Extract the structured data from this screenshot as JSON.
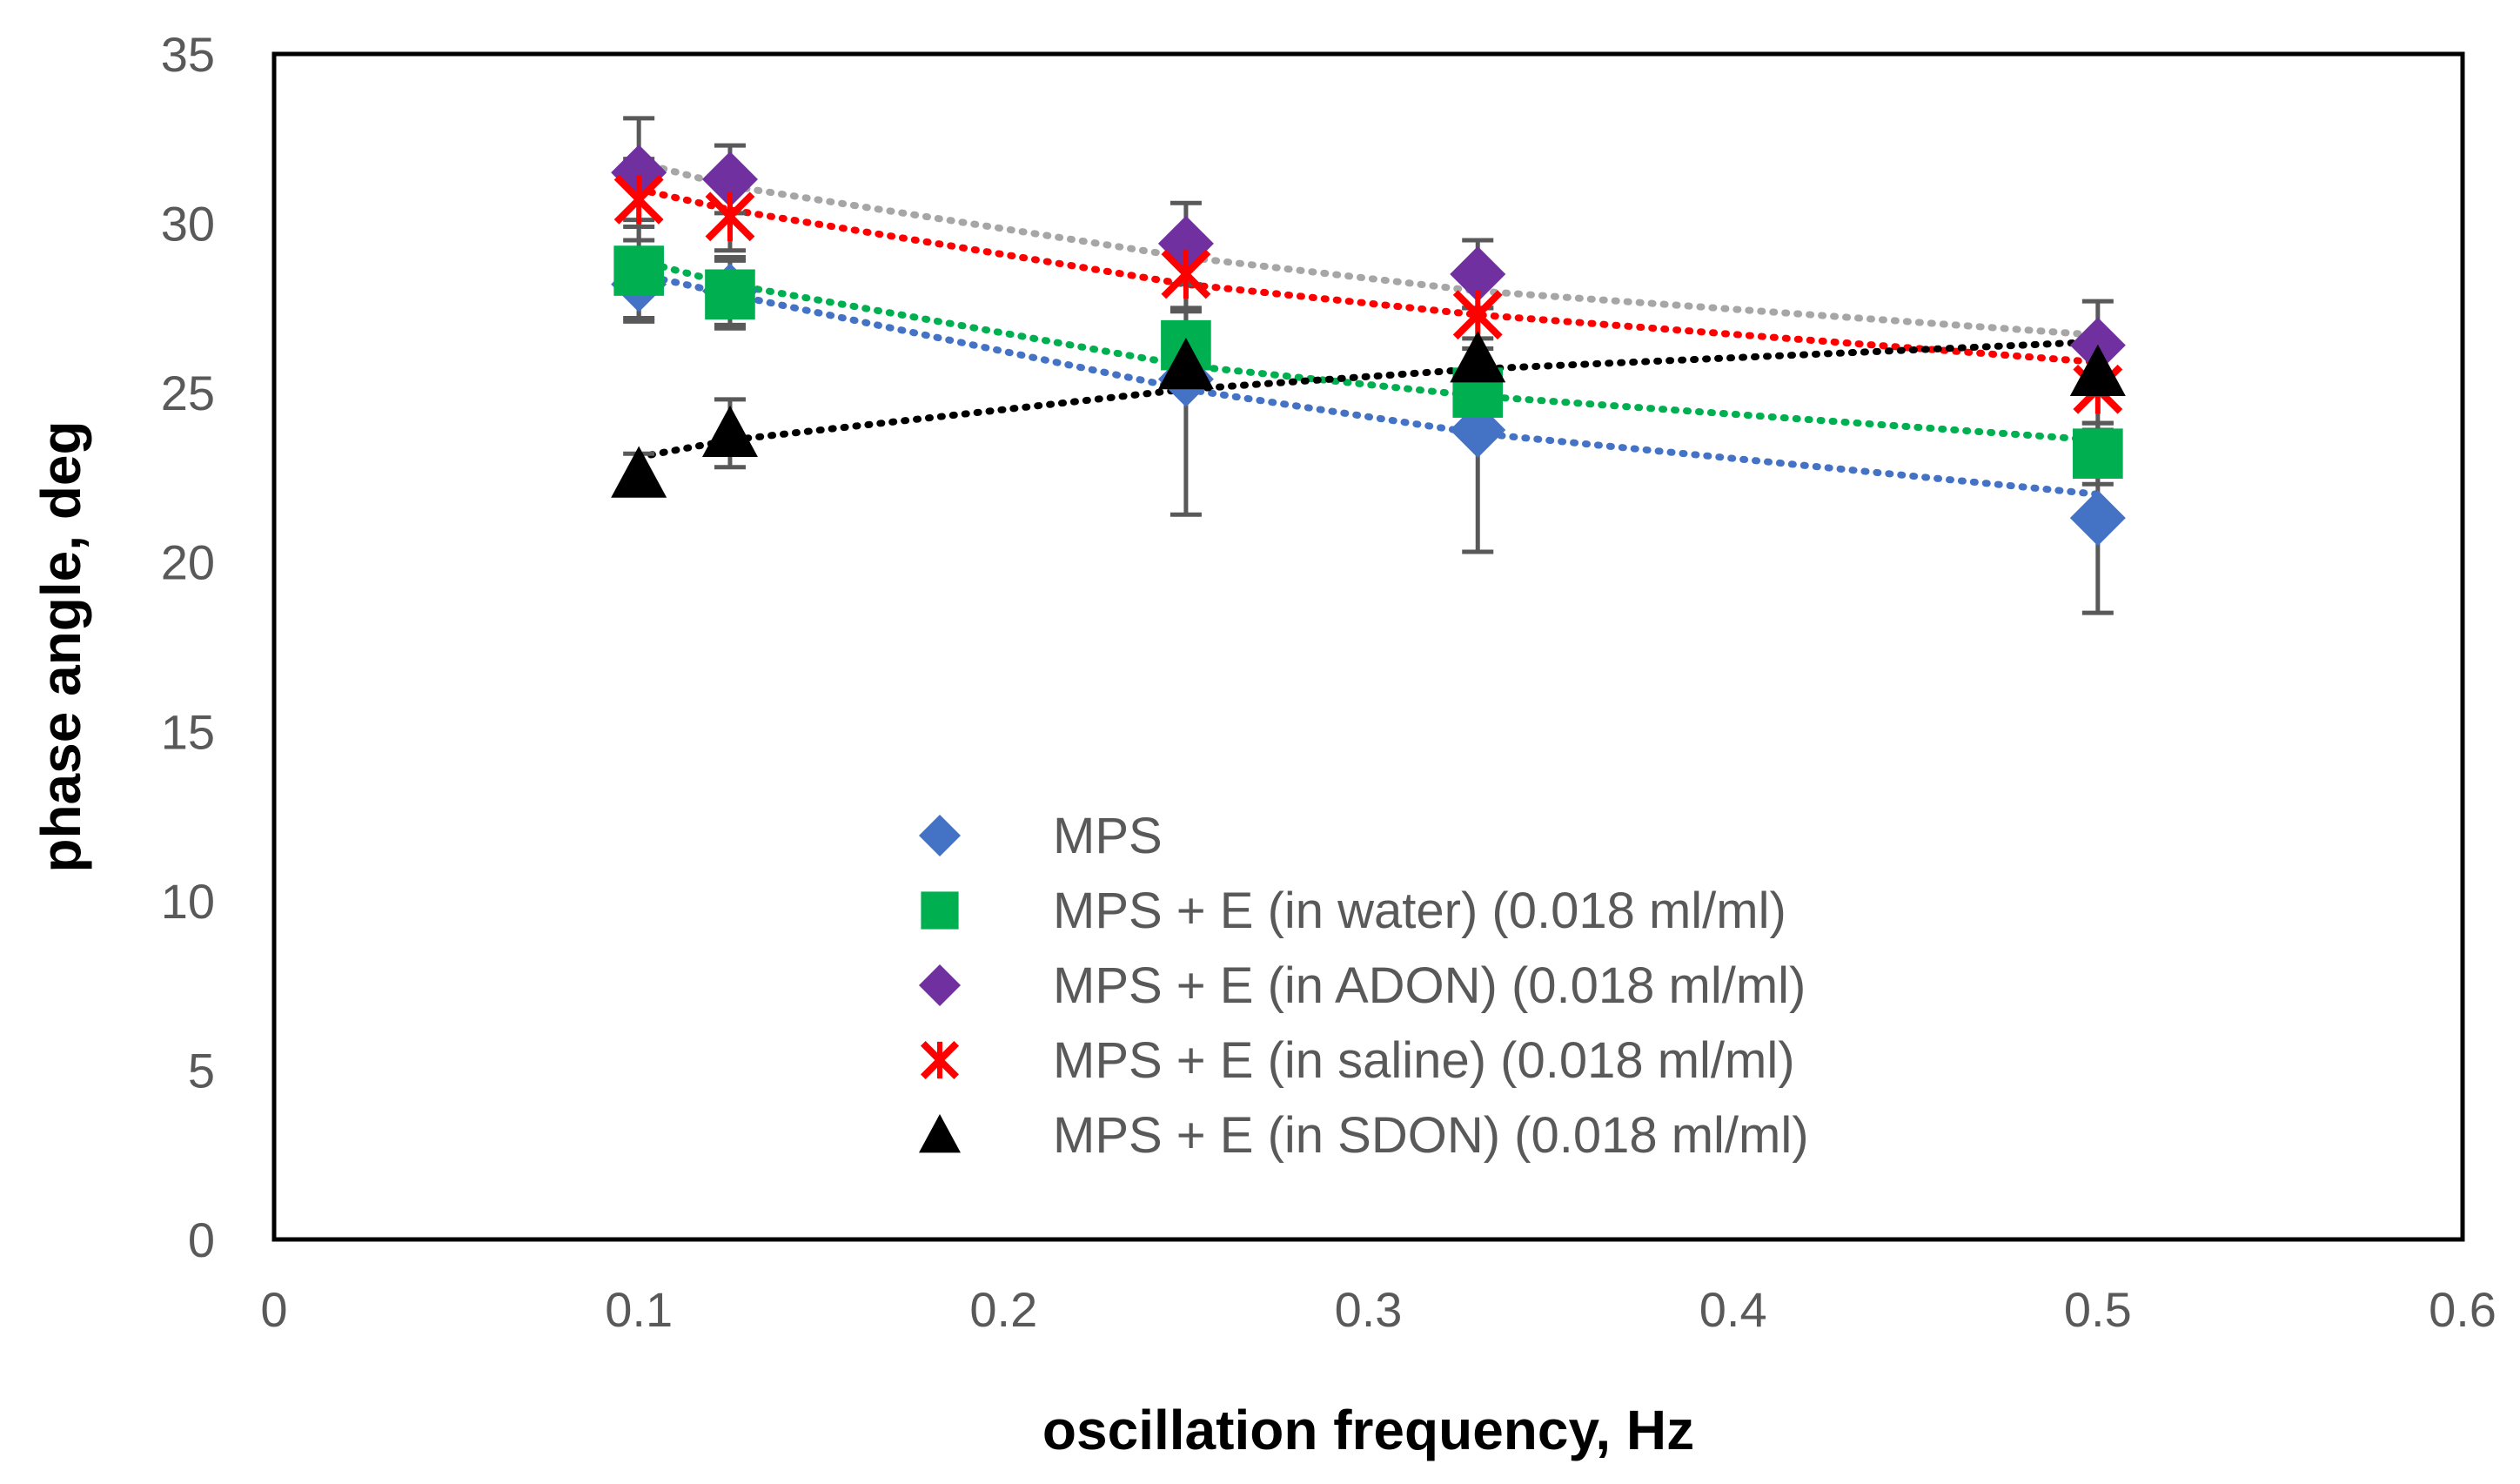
{
  "chart_data": {
    "type": "scatter",
    "xlabel": "oscillation frequency, Hz",
    "ylabel": "phase angle, deg",
    "xlim": [
      0,
      0.6
    ],
    "ylim": [
      0,
      35
    ],
    "xticks": [
      0,
      0.1,
      0.2,
      0.3,
      0.4,
      0.5,
      0.6
    ],
    "yticks": [
      0,
      5,
      10,
      15,
      20,
      25,
      30,
      35
    ],
    "xtick_labels": [
      "0",
      "0.1",
      "0.2",
      "0.3",
      "0.4",
      "0.5",
      "0.6"
    ],
    "ytick_labels": [
      "0",
      "5",
      "10",
      "15",
      "20",
      "25",
      "30",
      "35"
    ],
    "grid": false,
    "legend_position": "center",
    "series": [
      {
        "name": "MPS",
        "marker": "diamond",
        "color": "#4472C4",
        "x": [
          0.1,
          0.125,
          0.25,
          0.33,
          0.5
        ],
        "y": [
          28.2,
          28.0,
          25.4,
          23.9,
          21.3
        ],
        "err": [
          1.0,
          1.0,
          4.0,
          3.6,
          2.8
        ],
        "trend": [
          [
            0.1,
            28.5
          ],
          [
            0.125,
            27.9
          ],
          [
            0.25,
            25.1
          ],
          [
            0.33,
            23.8
          ],
          [
            0.5,
            22.0
          ]
        ]
      },
      {
        "name": "MPS + E (in water) (0.018 ml/ml)",
        "marker": "square",
        "color": "#00B050",
        "x": [
          0.1,
          0.125,
          0.25,
          0.33,
          0.5
        ],
        "y": [
          28.6,
          27.9,
          26.4,
          25.0,
          23.2
        ],
        "err": [
          1.5,
          1.0,
          1.0,
          0.9,
          0.9
        ],
        "trend": [
          [
            0.1,
            28.9
          ],
          [
            0.125,
            28.2
          ],
          [
            0.25,
            25.8
          ],
          [
            0.33,
            24.9
          ],
          [
            0.5,
            23.6
          ]
        ]
      },
      {
        "name": "MPS + E (in ADON) (0.018 ml/ml)",
        "marker": "diamond",
        "color": "#7030A0",
        "x": [
          0.1,
          0.125,
          0.25,
          0.33,
          0.5
        ],
        "y": [
          31.5,
          31.3,
          29.4,
          28.5,
          26.4
        ],
        "err": [
          1.6,
          1.0,
          1.2,
          1.0,
          1.3
        ],
        "trend": [
          [
            0.1,
            31.8
          ],
          [
            0.125,
            31.1
          ],
          [
            0.25,
            29.0
          ],
          [
            0.33,
            28.0
          ],
          [
            0.5,
            26.7
          ]
        ]
      },
      {
        "name": "MPS + E (in saline) (0.018 ml/ml)",
        "marker": "x",
        "color": "#FF0000",
        "x": [
          0.1,
          0.125,
          0.25,
          0.33,
          0.5
        ],
        "y": [
          30.7,
          30.2,
          28.5,
          27.3,
          25.1
        ],
        "err": [
          1.2,
          1.0,
          1.0,
          1.0,
          1.2
        ],
        "trend": [
          [
            0.1,
            31.0
          ],
          [
            0.125,
            30.4
          ],
          [
            0.25,
            28.2
          ],
          [
            0.33,
            27.3
          ],
          [
            0.5,
            25.9
          ]
        ]
      },
      {
        "name": "MPS + E (in SDON) (0.018 ml/ml)",
        "marker": "triangle",
        "color": "#000000",
        "x": [
          0.1,
          0.125,
          0.25,
          0.33,
          0.5
        ],
        "y": [
          22.6,
          23.8,
          25.8,
          26.0,
          25.6
        ],
        "err": [
          0.6,
          1.0,
          0.6,
          0.6,
          0.6
        ],
        "trend": [
          [
            0.1,
            23.1
          ],
          [
            0.125,
            23.6
          ],
          [
            0.25,
            25.1
          ],
          [
            0.33,
            25.7
          ],
          [
            0.5,
            26.5
          ]
        ]
      }
    ],
    "trend_colors": [
      "#4472C4",
      "#00B050",
      "#A6A6A6",
      "#FF0000",
      "#000000"
    ]
  }
}
